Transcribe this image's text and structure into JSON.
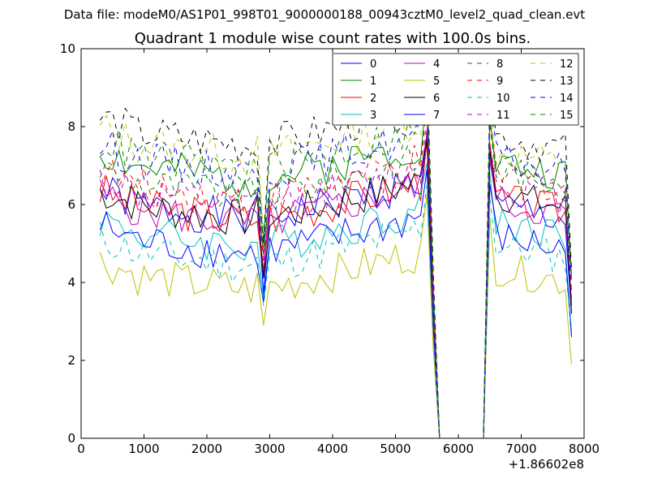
{
  "chart_data": {
    "type": "line",
    "suptitle": "Data file: modeM0/AS1P01_998T01_9000000188_00943cztM0_level2_quad_clean.evt",
    "title": "Quadrant 1 module wise count rates with 100.0s bins.",
    "xlabel": "",
    "ylabel": "",
    "x_offset_label": "+1.86602e8",
    "xlim": [
      0,
      8000
    ],
    "ylim": [
      0,
      10
    ],
    "xticks": [
      0,
      1000,
      2000,
      3000,
      4000,
      5000,
      6000,
      7000,
      8000
    ],
    "yticks": [
      0,
      2,
      4,
      6,
      8,
      10
    ],
    "x_tick_labels": [
      "0",
      "1000",
      "2000",
      "3000",
      "4000",
      "5000",
      "6000",
      "7000",
      "8000"
    ],
    "y_tick_labels": [
      "0",
      "2",
      "4",
      "6",
      "8",
      "10"
    ],
    "grid": false,
    "legend_position": "top-right",
    "x": [
      300,
      400,
      500,
      600,
      700,
      800,
      900,
      1000,
      1100,
      1200,
      1300,
      1400,
      1500,
      1600,
      1700,
      1800,
      1900,
      2000,
      2100,
      2200,
      2300,
      2400,
      2500,
      2600,
      2700,
      2800,
      2900,
      3000,
      3100,
      3200,
      3300,
      3400,
      3500,
      3600,
      3700,
      3800,
      3900,
      4000,
      4100,
      4200,
      4300,
      4400,
      4500,
      4600,
      4700,
      4800,
      4900,
      5000,
      5100,
      5200,
      5300,
      5400,
      5500,
      5600,
      5700,
      5800,
      5900,
      6000,
      6100,
      6200,
      6300,
      6400,
      6500,
      6600,
      6700,
      6800,
      6900,
      7000,
      7100,
      7200,
      7300,
      7400,
      7500,
      7600,
      7700,
      7800
    ],
    "series": [
      {
        "name": "0",
        "color": "#0000ff",
        "style": "solid",
        "base": 6.0,
        "dip": 3.7,
        "late": 6.0,
        "end": 3.2,
        "seed": 1
      },
      {
        "name": "1",
        "color": "#008000",
        "style": "solid",
        "base": 7.0,
        "dip": 4.7,
        "late": 7.1,
        "end": 4.2,
        "seed": 2
      },
      {
        "name": "2",
        "color": "#ff0000",
        "style": "solid",
        "base": 6.0,
        "dip": 4.2,
        "late": 6.2,
        "end": 3.5,
        "seed": 3
      },
      {
        "name": "3",
        "color": "#00bfbf",
        "style": "solid",
        "base": 5.3,
        "dip": 3.6,
        "late": 5.6,
        "end": 2.7,
        "seed": 4
      },
      {
        "name": "4",
        "color": "#bf00bf",
        "style": "solid",
        "base": 5.9,
        "dip": 4.3,
        "late": 6.1,
        "end": 3.4,
        "seed": 5
      },
      {
        "name": "5",
        "color": "#bfbf00",
        "style": "solid",
        "base": 4.2,
        "dip": 2.9,
        "late": 4.4,
        "end": 1.9,
        "seed": 6
      },
      {
        "name": "6",
        "color": "#000000",
        "style": "solid",
        "base": 6.0,
        "dip": 4.1,
        "late": 6.3,
        "end": 3.2,
        "seed": 7
      },
      {
        "name": "7",
        "color": "#0000ff",
        "style": "solid",
        "base": 5.1,
        "dip": 3.5,
        "late": 5.2,
        "end": 2.6,
        "seed": 8
      },
      {
        "name": "8",
        "color": "#008000",
        "style": "dashed",
        "base": 6.6,
        "dip": 4.9,
        "late": 6.9,
        "end": 3.8,
        "seed": 9
      },
      {
        "name": "9",
        "color": "#ff0000",
        "style": "dashed",
        "base": 6.5,
        "dip": 4.7,
        "late": 6.8,
        "end": 3.7,
        "seed": 10
      },
      {
        "name": "10",
        "color": "#00bfbf",
        "style": "dashed",
        "base": 4.8,
        "dip": 3.4,
        "late": 5.0,
        "end": 2.8,
        "seed": 11
      },
      {
        "name": "11",
        "color": "#bf00bf",
        "style": "dashed",
        "base": 6.3,
        "dip": 4.5,
        "late": 6.5,
        "end": 3.6,
        "seed": 12
      },
      {
        "name": "12",
        "color": "#bfbf00",
        "style": "dashed",
        "base": 7.6,
        "dip": 5.2,
        "late": 7.4,
        "end": 4.2,
        "seed": 13
      },
      {
        "name": "13",
        "color": "#000000",
        "style": "dashed",
        "base": 7.9,
        "dip": 5.0,
        "late": 7.8,
        "end": 4.3,
        "seed": 14
      },
      {
        "name": "14",
        "color": "#0000ff",
        "style": "dashed",
        "base": 7.2,
        "dip": 5.0,
        "late": 7.2,
        "end": 4.0,
        "seed": 15
      },
      {
        "name": "15",
        "color": "#008000",
        "style": "dashed",
        "base": 7.3,
        "dip": 5.1,
        "late": 7.0,
        "end": 4.1,
        "seed": 16
      }
    ],
    "gap": {
      "start": 5700,
      "end": 6400,
      "value": 0
    }
  }
}
